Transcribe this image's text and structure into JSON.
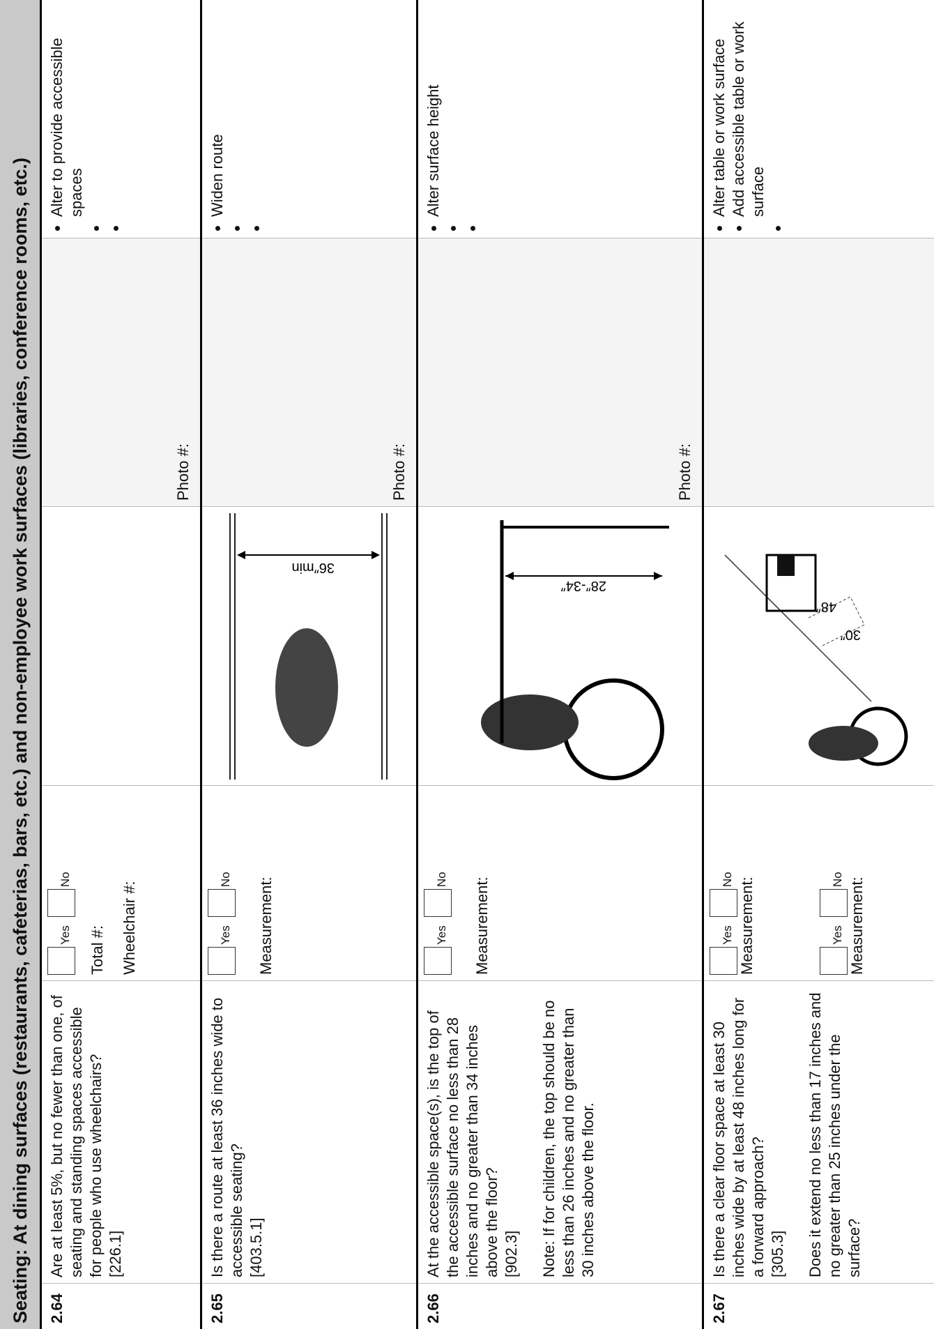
{
  "header": {
    "title": "Seating: At dining surfaces (restaurants, cafeterias, bars, etc.) and non-employee work surfaces (libraries, conference rooms, etc.)"
  },
  "rows": [
    {
      "number": "2.64",
      "question": [
        "Are at least 5%, but no fewer than one, of seating and standing spaces accessible for people who use wheelchairs?",
        "[226.1]"
      ],
      "responses": [
        {
          "yes": "Yes",
          "no": "No",
          "fields": [
            "Total #:",
            "Wheelchair #:"
          ]
        }
      ],
      "photo": "Photo #:",
      "actions": [
        "Alter to provide accessible spaces"
      ]
    },
    {
      "number": "2.65",
      "question": [
        "Is there a route at least 36 inches wide to accessible seating?",
        "[403.5.1]"
      ],
      "responses": [
        {
          "yes": "Yes",
          "no": "No",
          "fields": [
            "Measurement:"
          ]
        }
      ],
      "diagram_labels": [
        "36″min"
      ],
      "photo": "Photo #:",
      "actions": [
        "Widen route"
      ]
    },
    {
      "number": "2.66",
      "question": [
        "At the accessible space(s), is the top of the accessible surface no less than 28 inches and no greater than 34 inches above the floor?",
        "[902.3]",
        "Note: If for children, the top should be no less than 26 inches and no greater than 30 inches above the floor."
      ],
      "responses": [
        {
          "yes": "Yes",
          "no": "No",
          "fields": [
            "Measurement:"
          ]
        }
      ],
      "diagram_labels": [
        "28″-34″"
      ],
      "photo": "Photo #:",
      "actions": [
        "Alter surface height"
      ]
    },
    {
      "number": "2.67",
      "question": [
        "Is there a clear floor space at least 30 inches wide by at least 48 inches long for a forward approach?",
        "[305.3]",
        "Does it extend no less than 17 inches and no greater than 25 inches under the surface?"
      ],
      "responses": [
        {
          "yes": "Yes",
          "no": "No",
          "fields": [
            "Measurement:"
          ]
        },
        {
          "yes": "Yes",
          "no": "No",
          "fields": [
            "Measurement:"
          ]
        }
      ],
      "diagram_labels": [
        "30″",
        "48″"
      ],
      "actions": [
        "Alter table or work surface",
        "Add accessible table or work surface"
      ]
    }
  ]
}
